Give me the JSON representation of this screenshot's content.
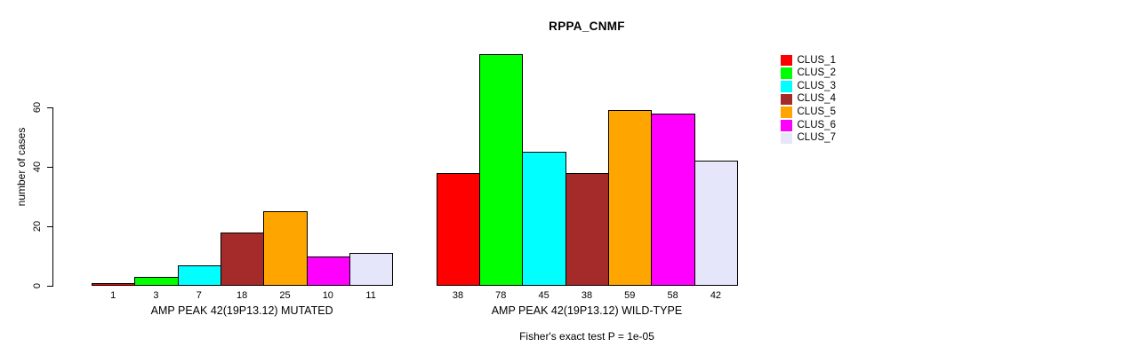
{
  "title": "RPPA_CNMF",
  "chart_data": {
    "type": "bar",
    "title": "RPPA_CNMF",
    "xlabel": "",
    "ylabel": "number of cases",
    "yticks": [
      0,
      20,
      40,
      60
    ],
    "ylim": [
      0,
      78
    ],
    "grid": false,
    "legend_position": "right",
    "series_labels": [
      "CLUS_1",
      "CLUS_2",
      "CLUS_3",
      "CLUS_4",
      "CLUS_5",
      "CLUS_6",
      "CLUS_7"
    ],
    "colors": [
      "#FF0000",
      "#00FF00",
      "#00FFFF",
      "#A52A2A",
      "#FFA500",
      "#FF00FF",
      "#E6E6FA"
    ],
    "groups": [
      {
        "label": "AMP PEAK 42(19P13.12) MUTATED",
        "values": [
          1,
          3,
          7,
          18,
          25,
          10,
          11
        ]
      },
      {
        "label": "AMP PEAK 42(19P13.12) WILD-TYPE",
        "values": [
          38,
          78,
          45,
          38,
          59,
          58,
          42
        ]
      }
    ],
    "annotation": "Fisher's exact test P = 1e-05"
  }
}
